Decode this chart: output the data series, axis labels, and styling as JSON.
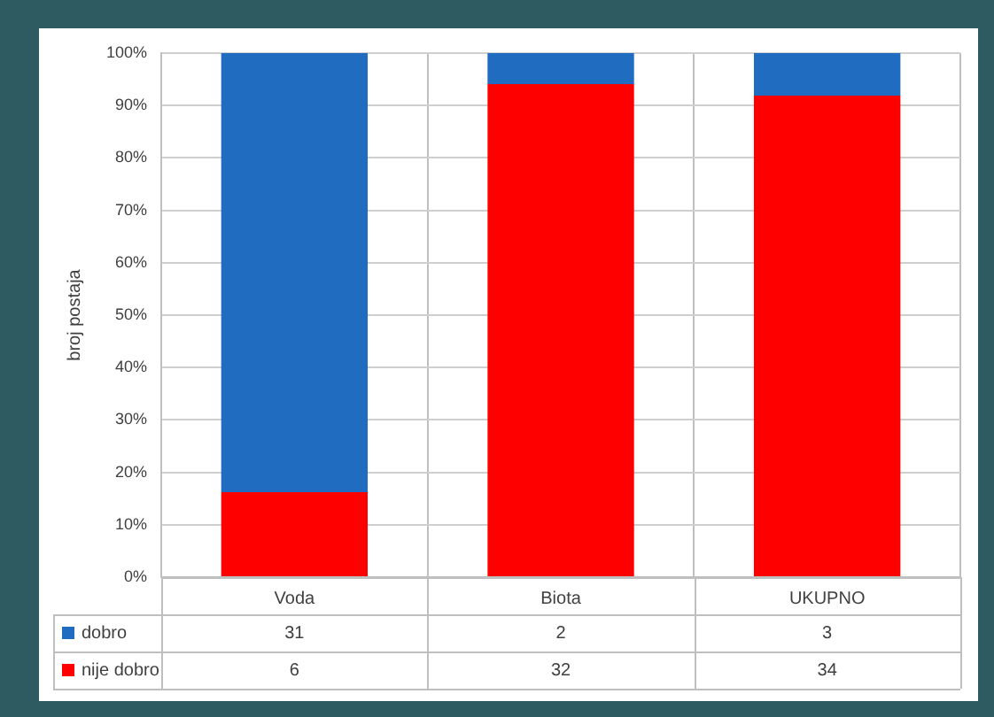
{
  "chart_data": {
    "type": "bar",
    "stacked": true,
    "ylabel": "broj postaja",
    "categories": [
      "Voda",
      "Biota",
      "UKUPNO"
    ],
    "series": [
      {
        "name": "nije dobro",
        "color": "#ff0000",
        "values": [
          16.2,
          94.1,
          91.9
        ]
      },
      {
        "name": "dobro",
        "color": "#1f6cc0",
        "values": [
          83.8,
          5.9,
          8.1
        ]
      }
    ],
    "annotations": [
      "31",
      "2",
      "3",
      "6",
      "32",
      "34"
    ],
    "ylim": [
      0,
      100
    ],
    "yticks": [
      {
        "value": 0,
        "label": "0%"
      },
      {
        "value": 10,
        "label": "10%"
      },
      {
        "value": 20,
        "label": "20%"
      },
      {
        "value": 30,
        "label": "30%"
      },
      {
        "value": 40,
        "label": "40%"
      },
      {
        "value": 50,
        "label": "50%"
      },
      {
        "value": 60,
        "label": "60%"
      },
      {
        "value": 70,
        "label": "70%"
      },
      {
        "value": 80,
        "label": "80%"
      },
      {
        "value": 90,
        "label": "90%"
      },
      {
        "value": 100,
        "label": "100%"
      }
    ],
    "grid": true,
    "legend": "bottom"
  }
}
